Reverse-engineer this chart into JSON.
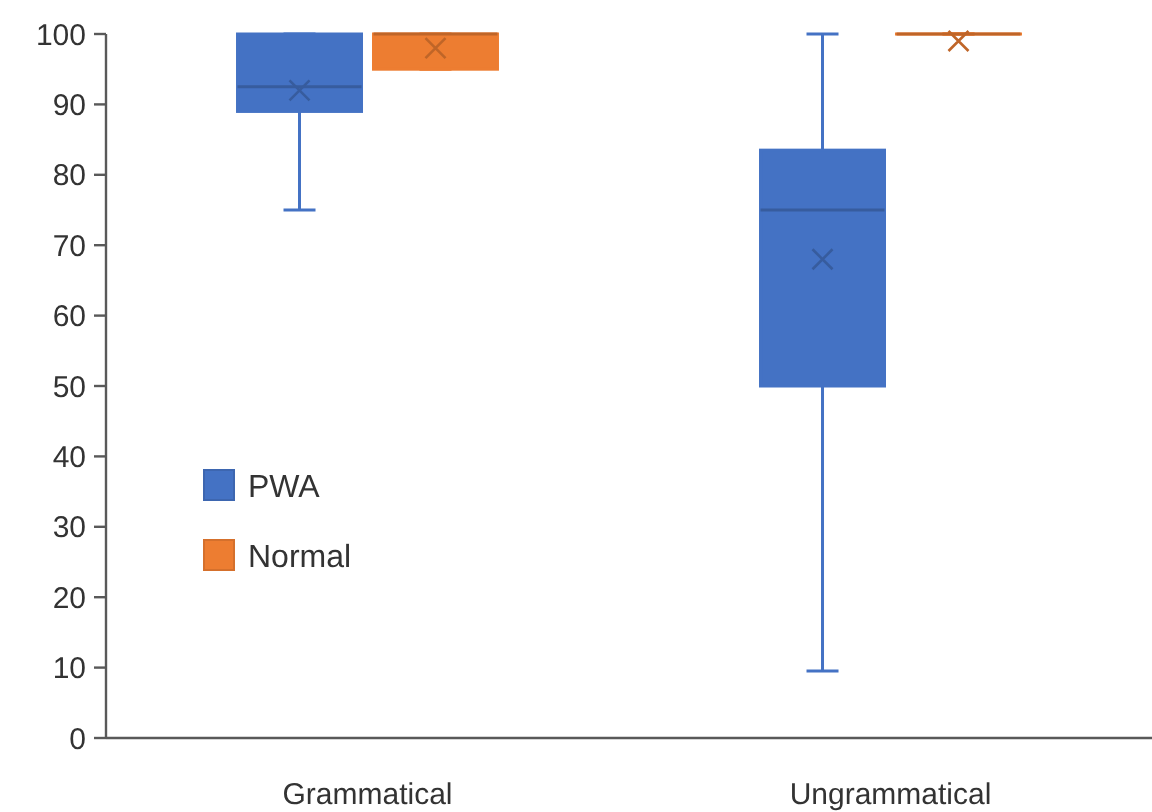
{
  "chart_data": {
    "type": "box",
    "categories": [
      "Grammatical",
      "Ungrammatical"
    ],
    "series": [
      {
        "name": "PWA",
        "color": "#4472c4",
        "boxes": [
          {
            "low": 75,
            "q1": 89,
            "median": 92.5,
            "q3": 100,
            "high": 100,
            "mean": 92
          },
          {
            "low": 9.5,
            "q1": 50,
            "median": 75,
            "q3": 83.5,
            "high": 100,
            "mean": 68
          }
        ]
      },
      {
        "name": "Normal",
        "color": "#ed7d31",
        "boxes": [
          {
            "low": 95,
            "q1": 95,
            "median": 100,
            "q3": 100,
            "high": 100,
            "mean": 98
          },
          {
            "low": 100,
            "q1": 100,
            "median": 100,
            "q3": 100,
            "high": 100,
            "mean": 99
          }
        ]
      }
    ],
    "ylim": [
      0,
      100
    ],
    "yticks": [
      0,
      10,
      20,
      30,
      40,
      50,
      60,
      70,
      80,
      90,
      100
    ],
    "grid": false,
    "legend": "left",
    "marker": "cross"
  }
}
